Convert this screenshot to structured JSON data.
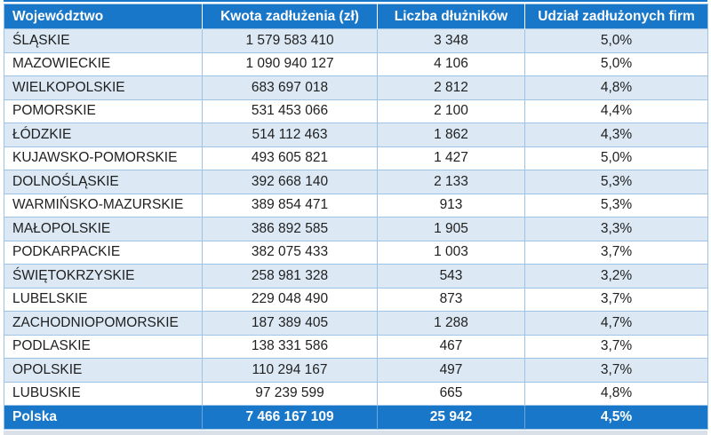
{
  "table": {
    "headers": [
      "Województwo",
      "Kwota zadłużenia (zł)",
      "Liczba dłużników",
      "Udział zadłużonych firm"
    ],
    "rows": [
      [
        "ŚLĄSKIE",
        "1 579 583 410",
        "3 348",
        "5,0%"
      ],
      [
        "MAZOWIECKIE",
        "1 090 940 127",
        "4 106",
        "5,0%"
      ],
      [
        "WIELKOPOLSKIE",
        "683 697 018",
        "2 812",
        "4,8%"
      ],
      [
        "POMORSKIE",
        "531 453 066",
        "2 100",
        "4,4%"
      ],
      [
        "ŁÓDZKIE",
        "514 112 463",
        "1 862",
        "4,3%"
      ],
      [
        "KUJAWSKO-POMORSKIE",
        "493 605 821",
        "1 427",
        "5,0%"
      ],
      [
        "DOLNOŚLĄSKIE",
        "392 668 140",
        "2 133",
        "5,3%"
      ],
      [
        "WARMIŃSKO-MAZURSKIE",
        "389 854 471",
        "913",
        "5,3%"
      ],
      [
        "MAŁOPOLSKIE",
        "386 892 585",
        "1 905",
        "3,3%"
      ],
      [
        "PODKARPACKIE",
        "382 075 433",
        "1 003",
        "3,7%"
      ],
      [
        "ŚWIĘTOKRZYSKIE",
        "258 981 328",
        "543",
        "3,2%"
      ],
      [
        "LUBELSKIE",
        "229 048 490",
        "873",
        "3,7%"
      ],
      [
        "ZACHODNIOPOMORSKIE",
        "187 389 405",
        "1 288",
        "4,7%"
      ],
      [
        "PODLASKIE",
        "138 331 586",
        "467",
        "3,7%"
      ],
      [
        "OPOLSKIE",
        "110 294 167",
        "497",
        "3,7%"
      ],
      [
        "LUBUSKIE",
        "97 239 599",
        "665",
        "4,8%"
      ]
    ],
    "total": [
      "Polska",
      "7 466 167 109",
      "25 942",
      "4,5%"
    ]
  },
  "colors": {
    "header_bg": "#1877C9",
    "total_bg": "#1877C9",
    "band_bg": "#DCE9F5",
    "row_bg": "#FFFFFF",
    "grid": "#9DC3E6",
    "text": "#1F1F1F",
    "header_text": "#FFFFFF"
  },
  "chart_data": {
    "type": "table",
    "title": "",
    "columns": [
      "Województwo",
      "Kwota zadłużenia (zł)",
      "Liczba dłużników",
      "Udział zadłużonych firm"
    ],
    "rows": [
      {
        "wojewodztwo": "ŚLĄSKIE",
        "kwota_zadluzenia_zl": 1579583410,
        "liczba_dluznikow": 3348,
        "udzial_zadluzonych_firm_pct": 5.0
      },
      {
        "wojewodztwo": "MAZOWIECKIE",
        "kwota_zadluzenia_zl": 1090940127,
        "liczba_dluznikow": 4106,
        "udzial_zadluzonych_firm_pct": 5.0
      },
      {
        "wojewodztwo": "WIELKOPOLSKIE",
        "kwota_zadluzenia_zl": 683697018,
        "liczba_dluznikow": 2812,
        "udzial_zadluzonych_firm_pct": 4.8
      },
      {
        "wojewodztwo": "POMORSKIE",
        "kwota_zadluzenia_zl": 531453066,
        "liczba_dluznikow": 2100,
        "udzial_zadluzonych_firm_pct": 4.4
      },
      {
        "wojewodztwo": "ŁÓDZKIE",
        "kwota_zadluzenia_zl": 514112463,
        "liczba_dluznikow": 1862,
        "udzial_zadluzonych_firm_pct": 4.3
      },
      {
        "wojewodztwo": "KUJAWSKO-POMORSKIE",
        "kwota_zadluzenia_zl": 493605821,
        "liczba_dluznikow": 1427,
        "udzial_zadluzonych_firm_pct": 5.0
      },
      {
        "wojewodztwo": "DOLNOŚLĄSKIE",
        "kwota_zadluzenia_zl": 392668140,
        "liczba_dluznikow": 2133,
        "udzial_zadluzonych_firm_pct": 5.3
      },
      {
        "wojewodztwo": "WARMIŃSKO-MAZURSKIE",
        "kwota_zadluzenia_zl": 389854471,
        "liczba_dluznikow": 913,
        "udzial_zadluzonych_firm_pct": 5.3
      },
      {
        "wojewodztwo": "MAŁOPOLSKIE",
        "kwota_zadluzenia_zl": 386892585,
        "liczba_dluznikow": 1905,
        "udzial_zadluzonych_firm_pct": 3.3
      },
      {
        "wojewodztwo": "PODKARPACKIE",
        "kwota_zadluzenia_zl": 382075433,
        "liczba_dluznikow": 1003,
        "udzial_zadluzonych_firm_pct": 3.7
      },
      {
        "wojewodztwo": "ŚWIĘTOKRZYSKIE",
        "kwota_zadluzenia_zl": 258981328,
        "liczba_dluznikow": 543,
        "udzial_zadluzonych_firm_pct": 3.2
      },
      {
        "wojewodztwo": "LUBELSKIE",
        "kwota_zadluzenia_zl": 229048490,
        "liczba_dluznikow": 873,
        "udzial_zadluzonych_firm_pct": 3.7
      },
      {
        "wojewodztwo": "ZACHODNIOPOMORSKIE",
        "kwota_zadluzenia_zl": 187389405,
        "liczba_dluznikow": 1288,
        "udzial_zadluzonych_firm_pct": 4.7
      },
      {
        "wojewodztwo": "PODLASKIE",
        "kwota_zadluzenia_zl": 138331586,
        "liczba_dluznikow": 467,
        "udzial_zadluzonych_firm_pct": 3.7
      },
      {
        "wojewodztwo": "OPOLSKIE",
        "kwota_zadluzenia_zl": 110294167,
        "liczba_dluznikow": 497,
        "udzial_zadluzonych_firm_pct": 3.7
      },
      {
        "wojewodztwo": "LUBUSKIE",
        "kwota_zadluzenia_zl": 97239599,
        "liczba_dluznikow": 665,
        "udzial_zadluzonych_firm_pct": 4.8
      }
    ],
    "total_row": {
      "wojewodztwo": "Polska",
      "kwota_zadluzenia_zl": 7466167109,
      "liczba_dluznikow": 25942,
      "udzial_zadluzonych_firm_pct": 4.5
    },
    "layout": {
      "grid": true,
      "banded_rows": true,
      "first_column_align": "left",
      "other_columns_align": "center"
    }
  }
}
